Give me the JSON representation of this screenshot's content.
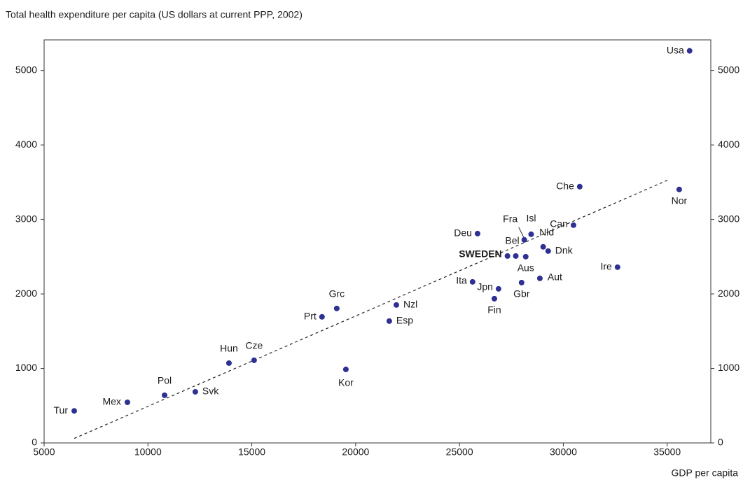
{
  "chart_data": {
    "type": "scatter",
    "title": "Total health expenditure per capita (US dollars at current PPP, 2002)",
    "x_label": "GDP per capita",
    "labels": [
      "Tur",
      "Mex",
      "Pol",
      "Svk",
      "Hun",
      "Cze",
      "Prt",
      "Grc",
      "Kor",
      "Esp",
      "Nzl",
      "Ita",
      "Deu",
      "Fin",
      "Jpn",
      "SWEDEN",
      "Bel",
      "Aus",
      "Fra",
      "Isl",
      "Nld",
      "Dnk",
      "Gbr",
      "Aut",
      "Can",
      "Che",
      "Ire",
      "Nor",
      "Usa"
    ],
    "x": [
      6450,
      9010,
      10800,
      12280,
      13900,
      15110,
      18380,
      19090,
      19530,
      21620,
      21960,
      25630,
      25870,
      26680,
      26880,
      27310,
      27710,
      28190,
      28120,
      28450,
      29030,
      29270,
      27990,
      28870,
      30490,
      30790,
      32610,
      35580,
      36080
    ],
    "y": [
      430,
      545,
      640,
      686,
      1071,
      1109,
      1692,
      1805,
      987,
      1635,
      1852,
      2162,
      2810,
      1936,
      2068,
      2509,
      2509,
      2500,
      2726,
      2801,
      2632,
      2575,
      2152,
      2209,
      2923,
      3440,
      2359,
      3402,
      5263
    ],
    "color": "#2e3192",
    "trendline": {
      "x": [
        6450,
        35130
      ],
      "y": [
        60,
        3540
      ]
    },
    "xlim": [
      5000,
      37100
    ],
    "ylim": [
      0,
      5410
    ],
    "xticks": [
      5000,
      10000,
      15000,
      20000,
      25000,
      30000,
      35000
    ],
    "yticks": [
      0,
      1000,
      2000,
      3000,
      4000,
      5000
    ]
  }
}
